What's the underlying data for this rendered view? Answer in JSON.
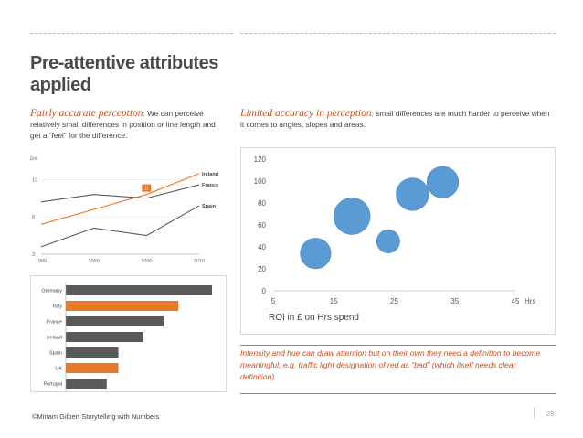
{
  "title": "Pre-attentive attributes applied",
  "left_text": {
    "emphasis": "Fairly accurate perception",
    "rest": ": We can perceive relatively small differences in position or line length and get a “feel” for the difference."
  },
  "right_text": {
    "emphasis": "Limited accuracy in perception",
    "rest": ": small differences are much harder to perceive when it comes to angles, slopes and areas."
  },
  "caption": "Intensity and hue can draw attention but on their own they need a definition to become meaningful, e.g. traffic light designation of red as “bad” (which itself needs clear definition).",
  "footer": "©Miriam Gilbert Storytelling with Numbers",
  "page_number": "28",
  "colors": {
    "accent": "#e8792b",
    "gray_line": "#595959",
    "bubble": "#5b9bd5",
    "gray_bar": "#595959"
  },
  "chart_data": [
    {
      "type": "line",
      "ylabel": "£m",
      "x": [
        1980,
        1990,
        2000,
        2010
      ],
      "yticks": [
        3,
        8,
        13
      ],
      "ylim": [
        3,
        15
      ],
      "series": [
        {
          "name": "Ireland",
          "values": [
            7.0,
            9.0,
            11.0,
            13.8
          ],
          "highlight": true
        },
        {
          "name": "France",
          "values": [
            10.0,
            11.0,
            10.5,
            12.3
          ],
          "highlight": false
        },
        {
          "name": "Spain",
          "values": [
            4.0,
            6.5,
            5.5,
            9.5
          ],
          "highlight": false
        }
      ],
      "annotation": {
        "label": "11",
        "x": 2000,
        "y": 11.0
      }
    },
    {
      "type": "bar",
      "orientation": "horizontal",
      "categories": [
        "Germany",
        "Italy",
        "France",
        "Ireland",
        "Spain",
        "UK",
        "Portugal"
      ],
      "values": [
        100,
        77,
        67,
        53,
        36,
        36,
        28
      ],
      "highlight": [
        false,
        true,
        false,
        false,
        false,
        true,
        false
      ]
    },
    {
      "type": "scatter",
      "bubble": true,
      "xlabel": "Hrs",
      "title": "ROI in £ on Hrs spend",
      "xticks": [
        5,
        15,
        25,
        35,
        45
      ],
      "yticks": [
        0,
        20,
        40,
        60,
        80,
        100,
        120
      ],
      "xlim": [
        5,
        45
      ],
      "ylim": [
        0,
        120
      ],
      "points": [
        {
          "x": 12,
          "y": 34,
          "size": 0.7
        },
        {
          "x": 18,
          "y": 68,
          "size": 1.0
        },
        {
          "x": 24,
          "y": 45,
          "size": 0.4
        },
        {
          "x": 28,
          "y": 88,
          "size": 0.8
        },
        {
          "x": 33,
          "y": 99,
          "size": 0.75
        }
      ]
    }
  ]
}
